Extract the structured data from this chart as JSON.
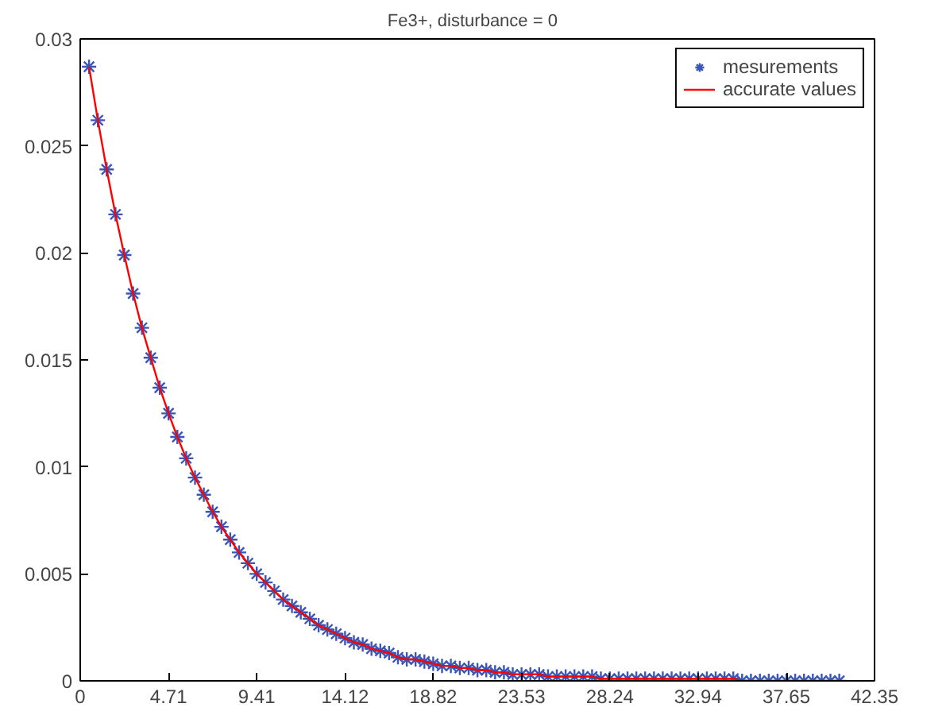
{
  "chart_data": {
    "type": "line",
    "title": "Fe3+,   disturbance = 0",
    "x": [
      0.47,
      0.94,
      1.41,
      1.88,
      2.35,
      2.82,
      3.29,
      3.76,
      4.24,
      4.71,
      5.18,
      5.65,
      6.12,
      6.59,
      7.06,
      7.53,
      8.0,
      8.47,
      8.94,
      9.41,
      9.88,
      10.35,
      10.82,
      11.29,
      11.76,
      12.24,
      12.71,
      13.18,
      13.65,
      14.12,
      14.59,
      15.06,
      15.53,
      16.0,
      16.47,
      16.94,
      17.41,
      17.88,
      18.35,
      18.82,
      19.29,
      19.76,
      20.24,
      20.71,
      21.18,
      21.65,
      22.12,
      22.59,
      23.06,
      23.53,
      24.0,
      24.47,
      24.94,
      25.41,
      25.88,
      26.35,
      26.82,
      27.29,
      27.76,
      28.24,
      28.71,
      29.18,
      29.65,
      30.12,
      30.59,
      31.06,
      31.53,
      32.0,
      32.47,
      32.94,
      33.41,
      33.88,
      34.35,
      34.82,
      35.29,
      35.76,
      36.24,
      36.71,
      37.18,
      37.65,
      38.12,
      38.59,
      39.06,
      39.53,
      40.0,
      40.47
    ],
    "series": [
      {
        "name": "mesurements",
        "type": "scatter",
        "marker": "cross",
        "color": "#3a56b8",
        "values": [
          0.0287,
          0.0262,
          0.0239,
          0.0218,
          0.0199,
          0.0181,
          0.0165,
          0.0151,
          0.0137,
          0.0125,
          0.0114,
          0.0104,
          0.0095,
          0.0087,
          0.0079,
          0.0072,
          0.0066,
          0.006,
          0.0055,
          0.005,
          0.0046,
          0.0042,
          0.0038,
          0.0035,
          0.0032,
          0.0029,
          0.0026,
          0.0024,
          0.0022,
          0.002,
          0.0018,
          0.0017,
          0.0015,
          0.0014,
          0.0013,
          0.0011,
          0.001,
          0.001,
          0.0009,
          0.0008,
          0.0007,
          0.0007,
          0.0006,
          0.0006,
          0.0005,
          0.0005,
          0.0004,
          0.0004,
          0.0003,
          0.0003,
          0.0003,
          0.0003,
          0.0002,
          0.0002,
          0.0002,
          0.0002,
          0.0002,
          0.0002,
          0.0001,
          0.0001,
          0.0001,
          0.0001,
          0.0001,
          0.0001,
          0.0001,
          0.0001,
          0.0001,
          0.0001,
          0.0001,
          0.0001,
          0.0001,
          0.0001,
          0.0001,
          0.0001,
          0.0,
          0.0,
          0.0,
          0.0,
          0.0,
          0.0,
          0.0,
          0.0,
          0.0,
          0.0,
          0.0,
          0.0
        ]
      },
      {
        "name": "accurate values",
        "line_style": "solid",
        "color": "#ff0000",
        "values": [
          0.0287,
          0.0262,
          0.0239,
          0.0218,
          0.0199,
          0.0181,
          0.0165,
          0.0151,
          0.0137,
          0.0125,
          0.0114,
          0.0104,
          0.0095,
          0.0087,
          0.0079,
          0.0072,
          0.0066,
          0.006,
          0.0055,
          0.005,
          0.0046,
          0.0042,
          0.0038,
          0.0035,
          0.0032,
          0.0029,
          0.0026,
          0.0024,
          0.0022,
          0.002,
          0.0018,
          0.0017,
          0.0015,
          0.0014,
          0.0013,
          0.0011,
          0.001,
          0.001,
          0.0009,
          0.0008,
          0.0007,
          0.0007,
          0.0006,
          0.0006,
          0.0005,
          0.0005,
          0.0004,
          0.0004,
          0.0003,
          0.0003,
          0.0003,
          0.0003,
          0.0002,
          0.0002,
          0.0002,
          0.0002,
          0.0002,
          0.0002,
          0.0001,
          0.0001,
          0.0001,
          0.0001,
          0.0001,
          0.0001,
          0.0001,
          0.0001,
          0.0001,
          0.0001,
          0.0001,
          0.0001,
          0.0001,
          0.0001,
          0.0001,
          0.0001,
          0.0,
          0.0,
          null,
          null,
          null,
          null,
          null,
          null,
          null,
          null,
          null,
          null
        ]
      }
    ],
    "xlim": [
      0,
      42.35
    ],
    "xticks": [
      0,
      4.71,
      9.41,
      14.12,
      18.82,
      23.53,
      28.24,
      32.94,
      37.65,
      42.35
    ],
    "ylim": [
      0,
      0.03
    ],
    "yticks": [
      0,
      0.005,
      0.01,
      0.015,
      0.02,
      0.025,
      0.03
    ],
    "grid": false,
    "legend": "top right"
  }
}
